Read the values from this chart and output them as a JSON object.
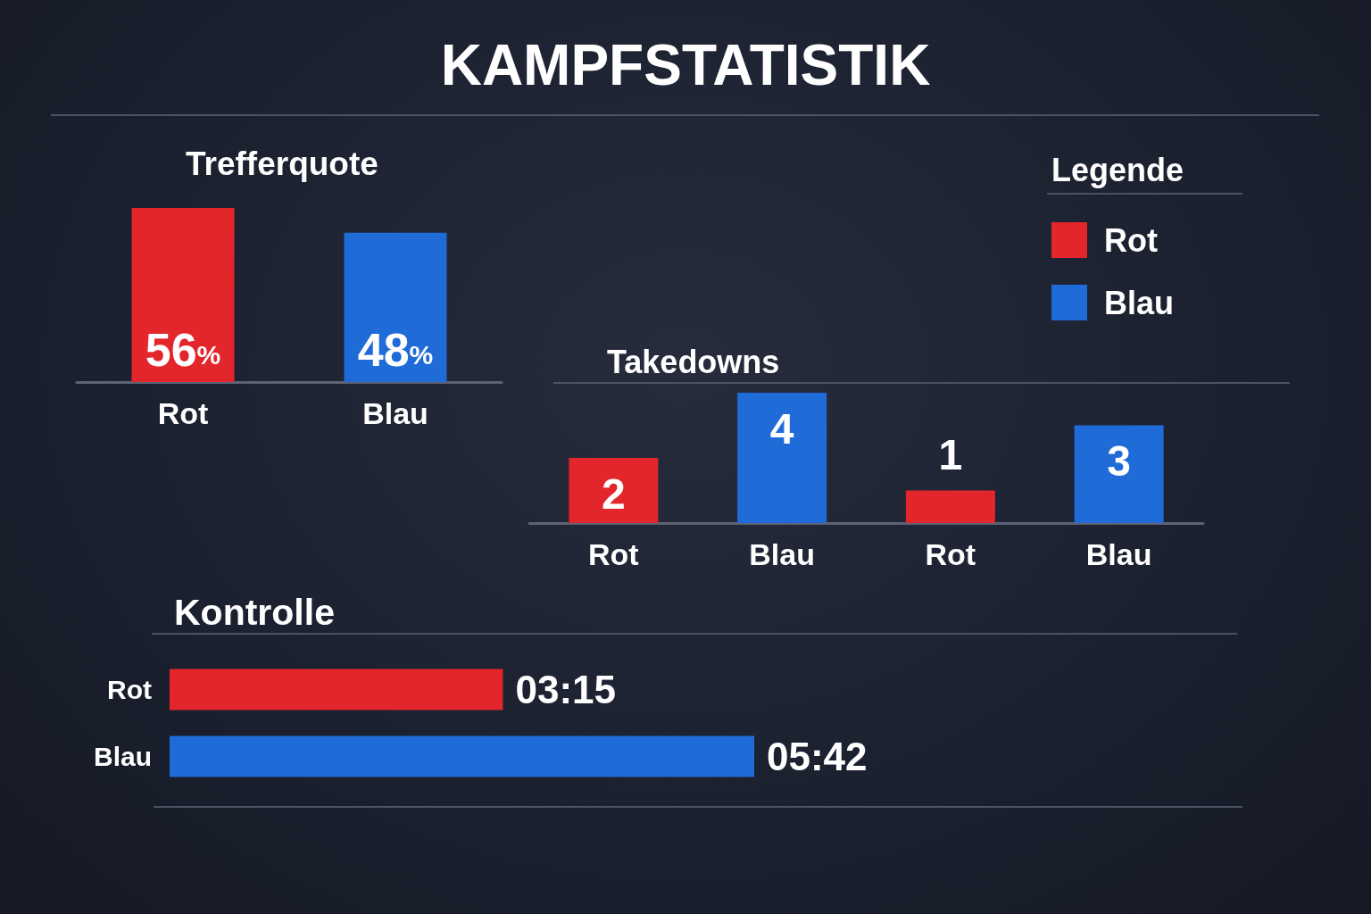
{
  "chart_data": [
    {
      "type": "bar",
      "title": "KAMPFSTATISTIK",
      "subtitle": "Trefferquote",
      "categories": [
        "Rot",
        "Blau"
      ],
      "values": [
        56,
        48
      ],
      "colors": [
        "#e3262b",
        "#1f6bd8"
      ],
      "value_labels": [
        "56%",
        "48%"
      ]
    },
    {
      "type": "bar",
      "title": "Takedowns",
      "categories": [
        "Rot",
        "Blau",
        "Rot",
        "Blau"
      ],
      "series": [
        {
          "name": "Rot",
          "color": "#e3262b",
          "values": [
            2,
            null,
            1,
            null
          ]
        },
        {
          "name": "Blau",
          "color": "#1f6bd8",
          "values": [
            null,
            4,
            null,
            3
          ]
        }
      ],
      "stacked": true,
      "data_labels": true,
      "legend": "top right",
      "legend_title": "Legende"
    },
    {
      "type": "bar",
      "title": "Kontrolle",
      "orientation": "horizontal",
      "categories": [
        "Rot",
        "Blau"
      ],
      "values": [
        3.25,
        5.7
      ],
      "colors": [
        "#e3262b",
        "#1f6bd8"
      ],
      "value_labels": [
        "03:15",
        "05:42"
      ]
    }
  ]
}
